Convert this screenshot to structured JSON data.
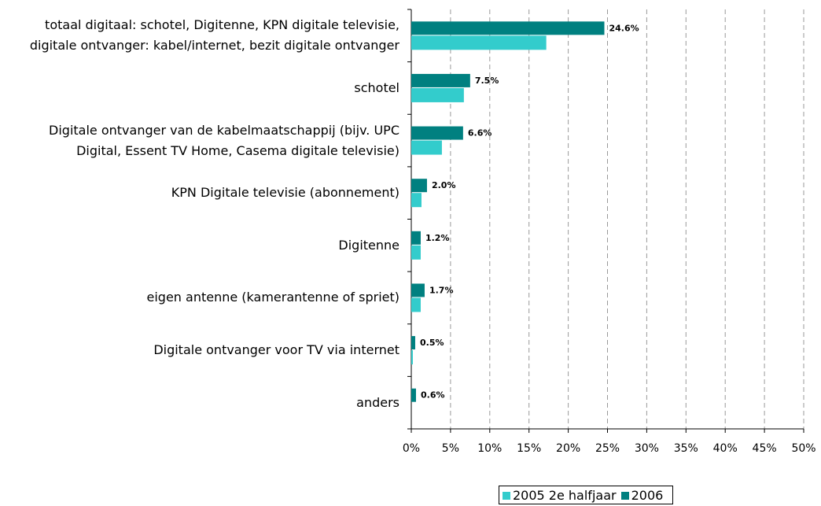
{
  "chart_data": {
    "type": "hbar",
    "categories": [
      "totaal digitaal: schotel, Digitenne, KPN digitale televisie, digitale ontvanger: kabel/internet, bezit digitale ontvanger",
      "schotel",
      "Digitale ontvanger van de kabelmaatschappij (bijv. UPC Digital, Essent TV Home,  Casema digitale televisie)",
      "KPN Digitale televisie (abonnement)",
      "Digitenne",
      "eigen antenne (kamerantenne of spriet)",
      "Digitale ontvanger voor TV via internet",
      "anders"
    ],
    "series": [
      {
        "name": "2005 2e halfjaar",
        "color": "#33cccc",
        "values": [
          17.2,
          6.7,
          3.9,
          1.3,
          1.2,
          1.2,
          0.2,
          0
        ]
      },
      {
        "name": "2006",
        "color": "#008080",
        "values": [
          24.6,
          7.5,
          6.6,
          2.0,
          1.2,
          1.7,
          0.5,
          0.6
        ],
        "value_labels": [
          "24.6%",
          "7.5%",
          "6.6%",
          "2.0%",
          "1.2%",
          "1.7%",
          "0.5%",
          "0.6%"
        ]
      }
    ],
    "xlim": [
      0,
      50
    ],
    "xticks": [
      {
        "value": 0,
        "label": "0%"
      },
      {
        "value": 5,
        "label": "5%"
      },
      {
        "value": 10,
        "label": "10%"
      },
      {
        "value": 15,
        "label": "15%"
      },
      {
        "value": 20,
        "label": "20%"
      },
      {
        "value": 25,
        "label": "25%"
      },
      {
        "value": 30,
        "label": "30%"
      },
      {
        "value": 35,
        "label": "35%"
      },
      {
        "value": 40,
        "label": "40%"
      },
      {
        "value": 45,
        "label": "45%"
      },
      {
        "value": 50,
        "label": "50%"
      }
    ],
    "grid": true,
    "legend": "bottom"
  }
}
